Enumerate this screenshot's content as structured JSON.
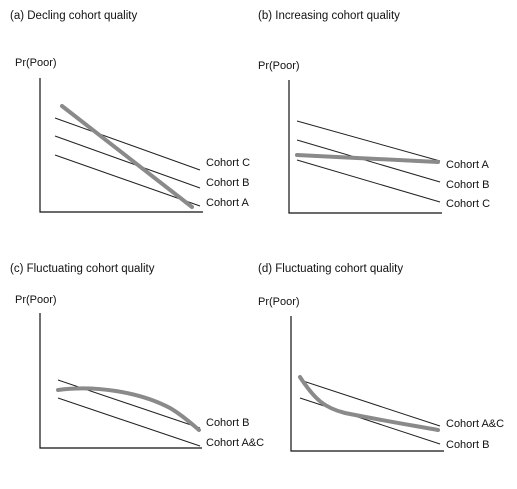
{
  "panels": [
    {
      "id": "a",
      "title": "(a) Decling cohort quality",
      "ylabel": "Pr(Poor)",
      "lines": [
        {
          "label": "Cohort C"
        },
        {
          "label": "Cohort B"
        },
        {
          "label": "Cohort A"
        }
      ]
    },
    {
      "id": "b",
      "title": "(b) Increasing cohort quality",
      "ylabel": "Pr(Poor)",
      "lines": [
        {
          "label": "Cohort A"
        },
        {
          "label": "Cohort B"
        },
        {
          "label": "Cohort C"
        }
      ]
    },
    {
      "id": "c",
      "title": "(c) Fluctuating cohort quality",
      "ylabel": "Pr(Poor)",
      "lines": [
        {
          "label": "Cohort B"
        },
        {
          "label": "Cohort A&C"
        }
      ]
    },
    {
      "id": "d",
      "title": "(d) Fluctuating cohort quality",
      "ylabel": "Pr(Poor)",
      "lines": [
        {
          "label": "Cohort A&C"
        },
        {
          "label": "Cohort B"
        }
      ]
    }
  ],
  "colors": {
    "axis": "#111111",
    "cohort_line": "#222222",
    "trend_line": "#8a8a8a"
  }
}
